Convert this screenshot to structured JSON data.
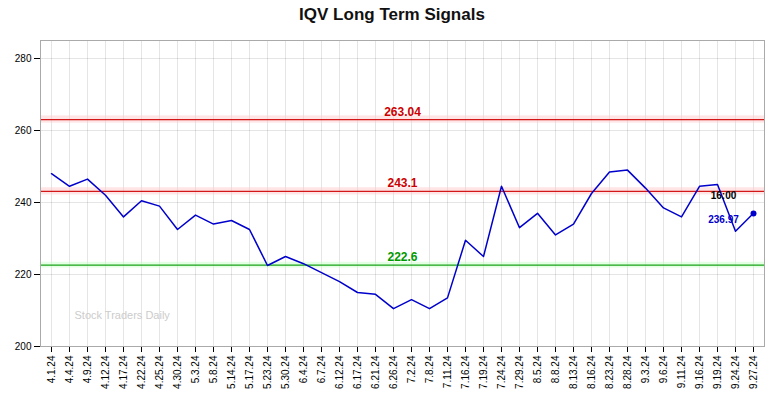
{
  "chart_data": {
    "type": "line",
    "title": "IQV Long Term Signals",
    "categories": [
      "4.1.24",
      "4.4.24",
      "4.9.24",
      "4.12.24",
      "4.17.24",
      "4.22.24",
      "4.25.24",
      "4.30.24",
      "5.3.24",
      "5.8.24",
      "5.14.24",
      "5.17.24",
      "5.23.24",
      "5.30.24",
      "6.4.24",
      "6.7.24",
      "6.12.24",
      "6.17.24",
      "6.21.24",
      "6.26.24",
      "7.2.24",
      "7.8.24",
      "7.11.24",
      "7.16.24",
      "7.19.24",
      "7.24.24",
      "7.29.24",
      "8.5.24",
      "8.8.24",
      "8.13.24",
      "8.16.24",
      "8.23.24",
      "8.28.24",
      "9.3.24",
      "9.6.24",
      "9.11.24",
      "9.16.24",
      "9.19.24",
      "9.24.24",
      "9.27.24"
    ],
    "values": [
      248.0,
      244.5,
      246.5,
      242.0,
      236.0,
      240.5,
      239.0,
      232.5,
      236.5,
      234.0,
      235.0,
      232.5,
      222.5,
      225.0,
      223.0,
      220.5,
      218.0,
      215.0,
      214.5,
      210.5,
      213.0,
      210.5,
      213.5,
      229.5,
      225.0,
      244.5,
      233.0,
      237.0,
      231.0,
      234.0,
      242.5,
      248.5,
      249.0,
      244.0,
      238.5,
      236.0,
      244.5,
      245.0,
      232.0,
      237.0
    ],
    "color": "#0000cc",
    "ylim": [
      200,
      285
    ],
    "yticks": [
      200,
      220,
      240,
      260,
      280
    ],
    "grid": true,
    "hlines": [
      {
        "value": 263.04,
        "label": "263.04",
        "color": "#cc0000",
        "band": 1,
        "band_color": "#ffcccc"
      },
      {
        "value": 243.1,
        "label": "243.1",
        "color": "#cc0000",
        "band": 1,
        "band_color": "#ffcccc"
      },
      {
        "value": 222.6,
        "label": "222.6",
        "color": "#009900",
        "band": 0.8,
        "band_color": "#ccffcc"
      }
    ],
    "last_point": {
      "x": "9.27.24",
      "value": 236.97,
      "label": "236.97",
      "time_label": "16:00",
      "color": "#0000cc"
    },
    "watermark": "Stock Traders Daily"
  }
}
